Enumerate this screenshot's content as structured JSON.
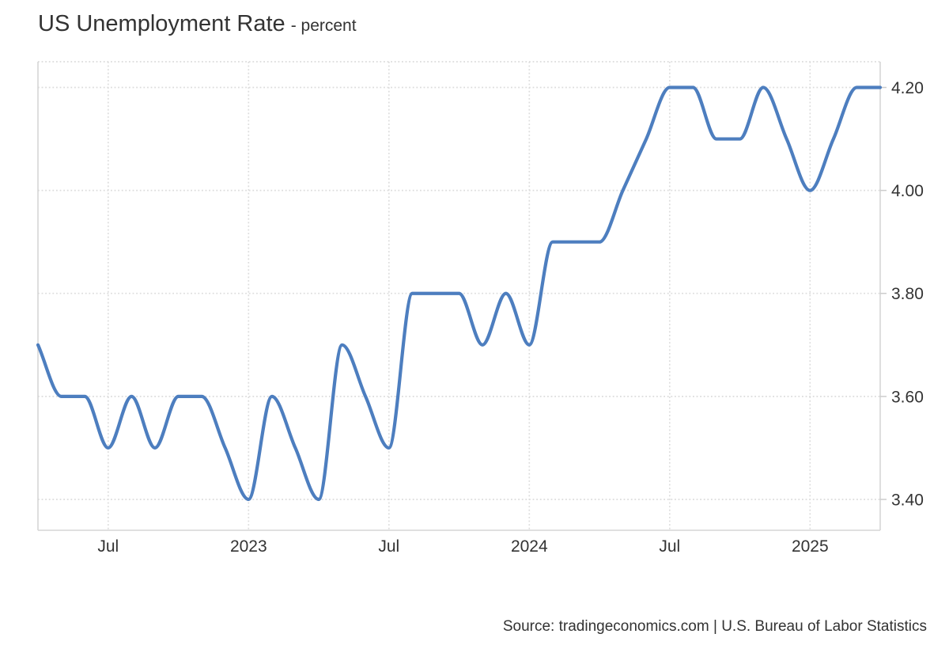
{
  "header": {
    "title": "US Unemployment Rate",
    "subtitle": "- percent"
  },
  "footer": {
    "source": "Source: tradingeconomics.com | U.S. Bureau of Labor Statistics"
  },
  "chart_data": {
    "type": "line",
    "title": "US Unemployment Rate",
    "subtitle": "percent",
    "ylabel": "",
    "xlabel": "",
    "legend_position": "none",
    "grid": "dotted horizontal and vertical",
    "line_style": "smooth spline",
    "x": [
      "2022-04",
      "2022-05",
      "2022-06",
      "2022-07",
      "2022-08",
      "2022-09",
      "2022-10",
      "2022-11",
      "2022-12",
      "2023-01",
      "2023-02",
      "2023-03",
      "2023-04",
      "2023-05",
      "2023-06",
      "2023-07",
      "2023-08",
      "2023-09",
      "2023-10",
      "2023-11",
      "2023-12",
      "2024-01",
      "2024-02",
      "2024-03",
      "2024-04",
      "2024-05",
      "2024-06",
      "2024-07",
      "2024-08",
      "2024-09",
      "2024-10",
      "2024-11",
      "2024-12",
      "2025-01",
      "2025-02",
      "2025-03",
      "2025-04"
    ],
    "series": [
      {
        "name": "US Unemployment Rate (percent)",
        "values": [
          3.7,
          3.6,
          3.6,
          3.5,
          3.6,
          3.5,
          3.6,
          3.6,
          3.5,
          3.4,
          3.6,
          3.5,
          3.4,
          3.7,
          3.6,
          3.5,
          3.8,
          3.8,
          3.8,
          3.7,
          3.8,
          3.7,
          3.9,
          3.9,
          3.9,
          4.0,
          4.1,
          4.2,
          4.2,
          4.1,
          4.1,
          4.2,
          4.1,
          4.0,
          4.1,
          4.2,
          4.2
        ]
      }
    ],
    "ylim": [
      3.34,
      4.25
    ],
    "yticks": [
      {
        "value": 3.4,
        "label": "3.40"
      },
      {
        "value": 3.6,
        "label": "3.60"
      },
      {
        "value": 3.8,
        "label": "3.80"
      },
      {
        "value": 4.0,
        "label": "4.00"
      },
      {
        "value": 4.2,
        "label": "4.20"
      }
    ],
    "xticks": [
      {
        "index": 3,
        "label": "Jul"
      },
      {
        "index": 9,
        "label": "2023"
      },
      {
        "index": 15,
        "label": "Jul"
      },
      {
        "index": 21,
        "label": "2024"
      },
      {
        "index": 27,
        "label": "Jul"
      },
      {
        "index": 33,
        "label": "2025"
      }
    ],
    "colors": {
      "line": "#4d7ebf",
      "grid": "#dcdcdc",
      "axis_border": "#d6d6d6",
      "tick": "#cccccc",
      "label": "#333333",
      "background": "#ffffff"
    }
  }
}
